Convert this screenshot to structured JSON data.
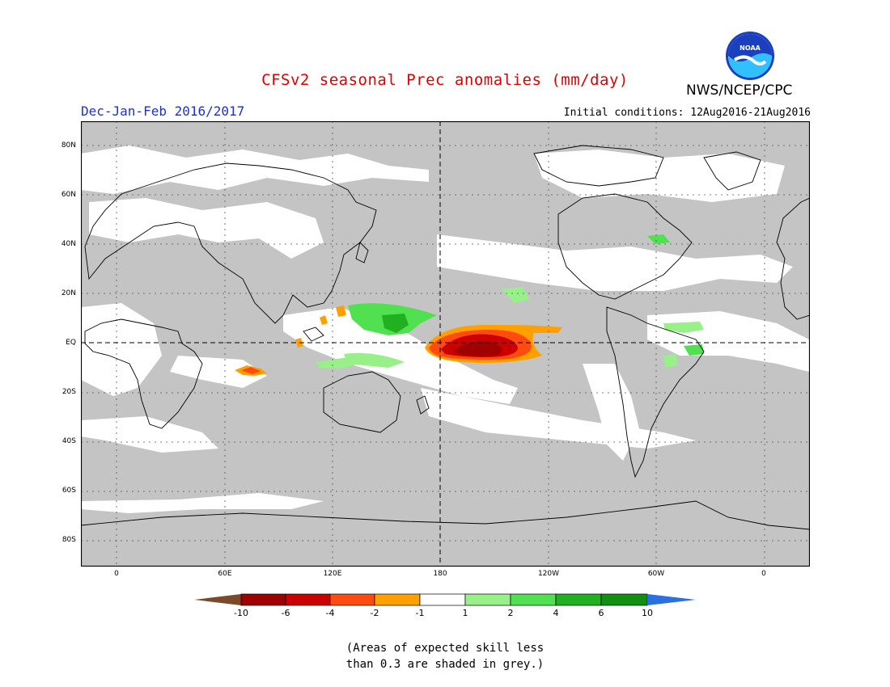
{
  "title": "CFSv2 seasonal Prec anomalies (mm/day)",
  "season": "Dec-Jan-Feb 2016/2017",
  "agency": "NWS/NCEP/CPC",
  "logo_text": "NOAA",
  "initial_conditions": "Initial conditions: 12Aug2016-21Aug2016",
  "lat_labels": [
    "80N",
    "60N",
    "40N",
    "20N",
    "EQ",
    "20S",
    "40S",
    "60S",
    "80S"
  ],
  "lon_labels": [
    "0",
    "60E",
    "120E",
    "180",
    "120W",
    "60W",
    "0"
  ],
  "colorbar": {
    "labels": [
      "-10",
      "-6",
      "-4",
      "-2",
      "-1",
      "1",
      "2",
      "4",
      "6",
      "10"
    ],
    "colors": {
      "lt10": "#7a4a2a",
      "n10_6": "#a00000",
      "n6_4": "#cc0000",
      "n4_2": "#ff4a10",
      "n2_1": "#ffa000",
      "n1_1": "#ffffff",
      "p1_2": "#98f088",
      "p2_4": "#50e050",
      "p4_6": "#20b020",
      "p6_10": "#109010",
      "gt10": "#2a70e0"
    }
  },
  "note_line1": "(Areas of expected skill less",
  "note_line2": "than 0.3 are shaded in grey.)",
  "colors": {
    "grey_mask": "#c4c4c4",
    "coast": "#000000"
  }
}
